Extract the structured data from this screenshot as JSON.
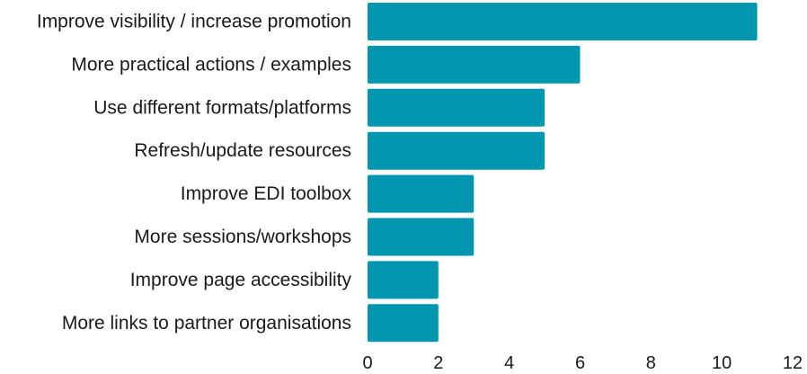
{
  "chart_data": {
    "type": "bar",
    "orientation": "horizontal",
    "title": "",
    "xlabel": "",
    "ylabel": "",
    "categories": [
      "Improve visibility / increase promotion",
      "More practical actions / examples",
      "Use different formats/platforms",
      "Refresh/update resources",
      "Improve EDI toolbox",
      "More sessions/workshops",
      "Improve page accessibility",
      "More links to partner organisations"
    ],
    "values": [
      11,
      6,
      5,
      5,
      3,
      3,
      2,
      2
    ],
    "xlim": [
      0,
      12
    ],
    "xticks": [
      "0",
      "2",
      "4",
      "6",
      "8",
      "10",
      "12"
    ],
    "grid": false,
    "legend": "none",
    "bar_color": "#0096b0"
  }
}
